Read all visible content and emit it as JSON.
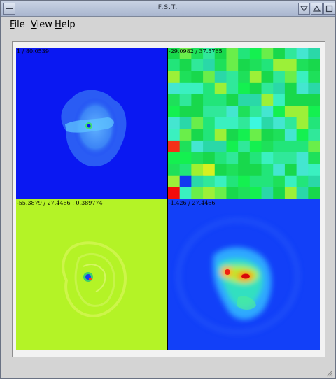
{
  "window": {
    "title": "F.S.T."
  },
  "titlebar_icons": [
    "window-menu-icon",
    "minimize-icon",
    "maximize-icon",
    "close-icon"
  ],
  "menu": {
    "file": {
      "mnemonic": "F",
      "rest": "ile"
    },
    "view": {
      "mnemonic": "V",
      "rest": "iew"
    },
    "help": {
      "mnemonic": "H",
      "rest": "elp"
    }
  },
  "panels": {
    "top_left": {
      "label": "1 / 80.0539"
    },
    "top_right": {
      "label": "-29.0982 / 37.5765"
    },
    "bottom_left": {
      "label": "-55.3879 / 27.4466 : 0.389774"
    },
    "bottom_right": {
      "label": "-1.426 / 27.4466"
    }
  },
  "colors": {
    "deep_blue": "#0a18f2",
    "green": "#22e57a",
    "yellow_green": "#b4f326",
    "blue": "#1240f8"
  }
}
